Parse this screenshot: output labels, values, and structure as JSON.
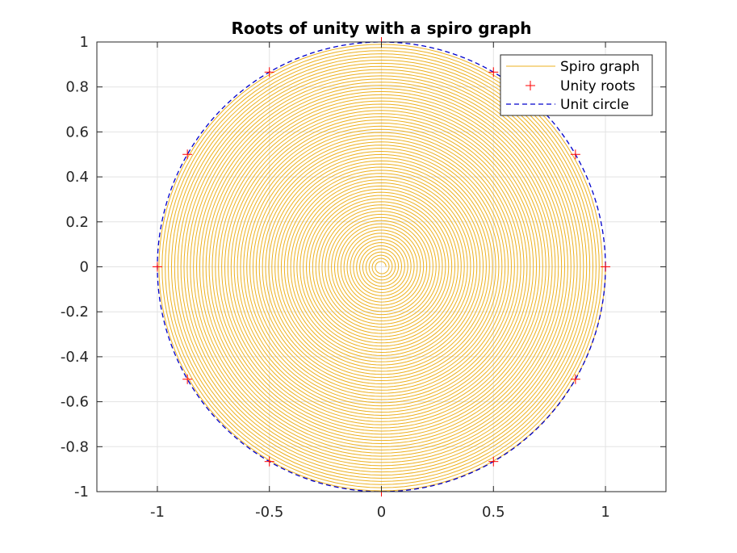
{
  "chart_data": {
    "type": "line",
    "title": "Roots of unity with a spiro graph",
    "xlabel": "",
    "ylabel": "",
    "xlim": [
      -1.27,
      1.27
    ],
    "ylim": [
      -1,
      1
    ],
    "x_ticks": [
      -1,
      -0.5,
      0,
      0.5,
      1
    ],
    "x_tick_labels": [
      "-1",
      "-0.5",
      "0",
      "0.5",
      "1"
    ],
    "y_ticks": [
      -1,
      -0.8,
      -0.6,
      -0.4,
      -0.2,
      0,
      0.2,
      0.4,
      0.6,
      0.8,
      1
    ],
    "y_tick_labels": [
      "-1",
      "-0.8",
      "-0.6",
      "-0.4",
      "-0.2",
      "0",
      "0.2",
      "0.4",
      "0.6",
      "0.8",
      "1"
    ],
    "grid": true,
    "legend_position": "top-right",
    "series": [
      {
        "name": "Spiro graph",
        "kind": "spiral",
        "color": "#EDB120",
        "r_start": 0.02,
        "r_end": 1.0,
        "turns": 70
      },
      {
        "name": "Unity roots",
        "kind": "markers",
        "marker": "+",
        "color": "#FF0000",
        "points": [
          [
            1,
            0
          ],
          [
            0.866,
            0.5
          ],
          [
            0.5,
            0.866
          ],
          [
            0,
            1
          ],
          [
            -0.5,
            0.866
          ],
          [
            -0.866,
            0.5
          ],
          [
            -1,
            0
          ],
          [
            -0.866,
            -0.5
          ],
          [
            -0.5,
            -0.866
          ],
          [
            0,
            -1
          ],
          [
            0.5,
            -0.866
          ],
          [
            0.866,
            -0.5
          ]
        ]
      },
      {
        "name": "Unit circle",
        "kind": "circle",
        "style": "dashed",
        "color": "#0000CC",
        "radius": 1
      }
    ]
  }
}
